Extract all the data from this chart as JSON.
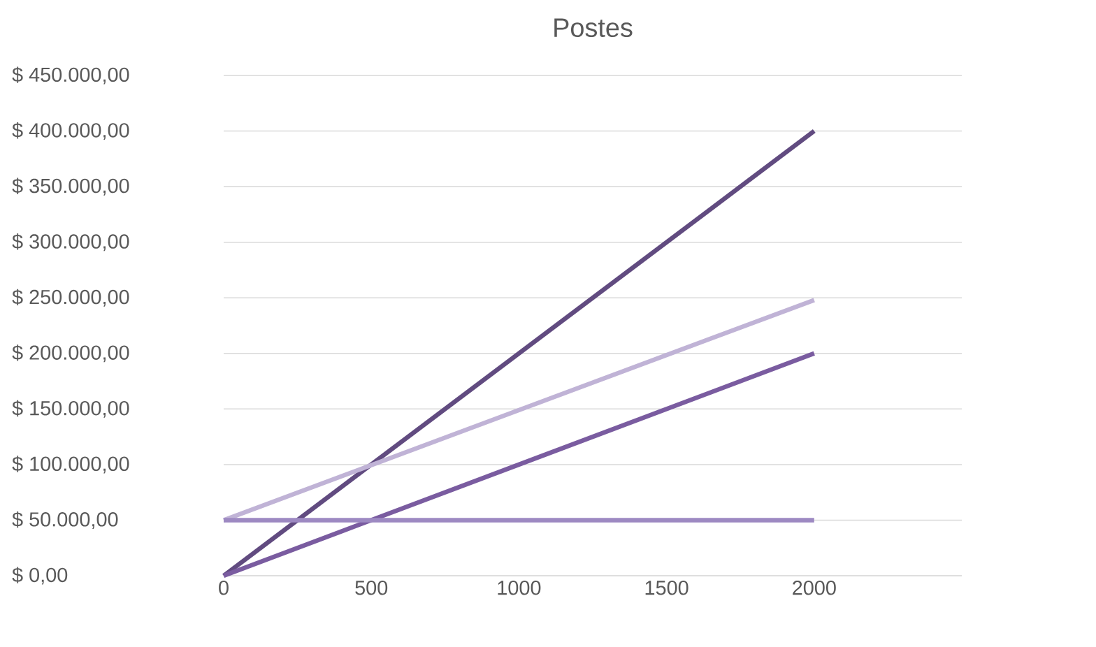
{
  "chart_data": {
    "type": "line",
    "title": "Postes",
    "series": [
      {
        "color": "#614b80",
        "values": [
          0,
          400000
        ]
      },
      {
        "color": "#c0b3d6",
        "values": [
          50000,
          248000
        ]
      },
      {
        "color": "#7a5ca0",
        "values": [
          0,
          200000
        ]
      },
      {
        "color": "#9d89c2",
        "values": [
          50000,
          50000
        ]
      }
    ],
    "x": [
      0,
      2000
    ],
    "xlim": [
      0,
      2500
    ],
    "xticks": [
      0,
      500,
      1000,
      1500,
      2000
    ],
    "ylim": [
      0,
      450000
    ],
    "yticks": [
      {
        "value": 0,
        "label": "$ 0,00"
      },
      {
        "value": 50000,
        "label": "$ 50.000,00"
      },
      {
        "value": 100000,
        "label": "$ 100.000,00"
      },
      {
        "value": 150000,
        "label": "$ 150.000,00"
      },
      {
        "value": 200000,
        "label": "$ 200.000,00"
      },
      {
        "value": 250000,
        "label": "$ 250.000,00"
      },
      {
        "value": 300000,
        "label": "$ 300.000,00"
      },
      {
        "value": 350000,
        "label": "$ 350.000,00"
      },
      {
        "value": 400000,
        "label": "$ 400.000,00"
      },
      {
        "value": 450000,
        "label": "$ 450.000,00"
      }
    ],
    "grid": "y",
    "marker": "none",
    "line_style": "solid"
  }
}
